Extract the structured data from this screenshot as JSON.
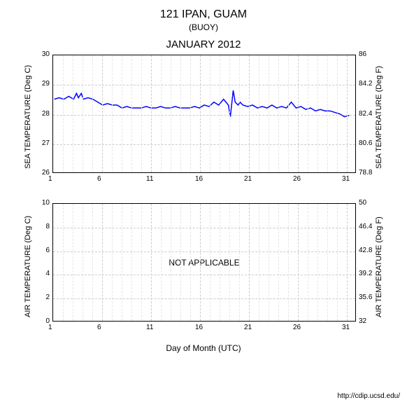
{
  "title": "121 IPAN, GUAM",
  "subtitle": "(BUOY)",
  "month_title": "JANUARY 2012",
  "x_axis_label": "Day of Month (UTC)",
  "footer_url": "http://cdip.ucsd.edu/",
  "chart1": {
    "type": "line",
    "y_left_label": "SEA TEMPERATURE (Deg C)",
    "y_right_label": "SEA TEMPERATURE (Deg F)",
    "y_left_min": 26,
    "y_left_max": 30,
    "y_left_ticks": [
      26,
      27,
      28,
      29,
      30
    ],
    "y_right_ticks": [
      78.8,
      80.6,
      82.4,
      84.2,
      86
    ],
    "x_min": 1,
    "x_max": 32,
    "x_ticks": [
      1,
      6,
      11,
      16,
      21,
      26,
      31
    ],
    "line_color": "#0000ff",
    "line_width": 1.5,
    "grid_color": "#cccccc",
    "background_color": "#ffffff",
    "data": {
      "x": [
        1,
        1.5,
        2,
        2.5,
        3,
        3.3,
        3.5,
        3.8,
        4,
        4.5,
        5,
        5.5,
        6,
        6.5,
        7,
        7.5,
        8,
        8.5,
        9,
        9.5,
        10,
        10.5,
        11,
        11.5,
        12,
        12.5,
        13,
        13.5,
        14,
        14.5,
        15,
        15.5,
        16,
        16.5,
        17,
        17.5,
        18,
        18.5,
        19,
        19.2,
        19.5,
        19.7,
        20,
        20.2,
        20.5,
        21,
        21.5,
        22,
        22.5,
        23,
        23.5,
        24,
        24.5,
        25,
        25.5,
        26,
        26.5,
        27,
        27.5,
        28,
        28.5,
        29,
        29.5,
        30,
        30.5,
        31,
        31.5
      ],
      "y": [
        28.5,
        28.55,
        28.5,
        28.6,
        28.5,
        28.7,
        28.55,
        28.7,
        28.5,
        28.55,
        28.5,
        28.4,
        28.3,
        28.35,
        28.3,
        28.3,
        28.2,
        28.25,
        28.2,
        28.2,
        28.2,
        28.25,
        28.2,
        28.2,
        28.25,
        28.2,
        28.2,
        28.25,
        28.2,
        28.2,
        28.2,
        28.25,
        28.2,
        28.3,
        28.25,
        28.4,
        28.3,
        28.5,
        28.3,
        27.9,
        28.8,
        28.4,
        28.3,
        28.4,
        28.3,
        28.25,
        28.3,
        28.2,
        28.25,
        28.2,
        28.3,
        28.2,
        28.25,
        28.2,
        28.4,
        28.2,
        28.25,
        28.15,
        28.2,
        28.1,
        28.15,
        28.1,
        28.1,
        28.05,
        28.0,
        27.9,
        27.95
      ]
    }
  },
  "chart2": {
    "type": "line",
    "y_left_label": "AIR TEMPERATURE (Deg C)",
    "y_right_label": "AIR TEMPERATURE (Deg F)",
    "y_left_min": 0,
    "y_left_max": 10,
    "y_left_ticks": [
      0,
      2,
      4,
      6,
      8,
      10
    ],
    "y_right_ticks": [
      32,
      35.6,
      39.2,
      42.8,
      46.4,
      50
    ],
    "x_min": 1,
    "x_max": 32,
    "x_ticks": [
      1,
      6,
      11,
      16,
      21,
      26,
      31
    ],
    "overlay_text": "NOT APPLICABLE",
    "grid_color": "#cccccc",
    "background_color": "#ffffff"
  }
}
